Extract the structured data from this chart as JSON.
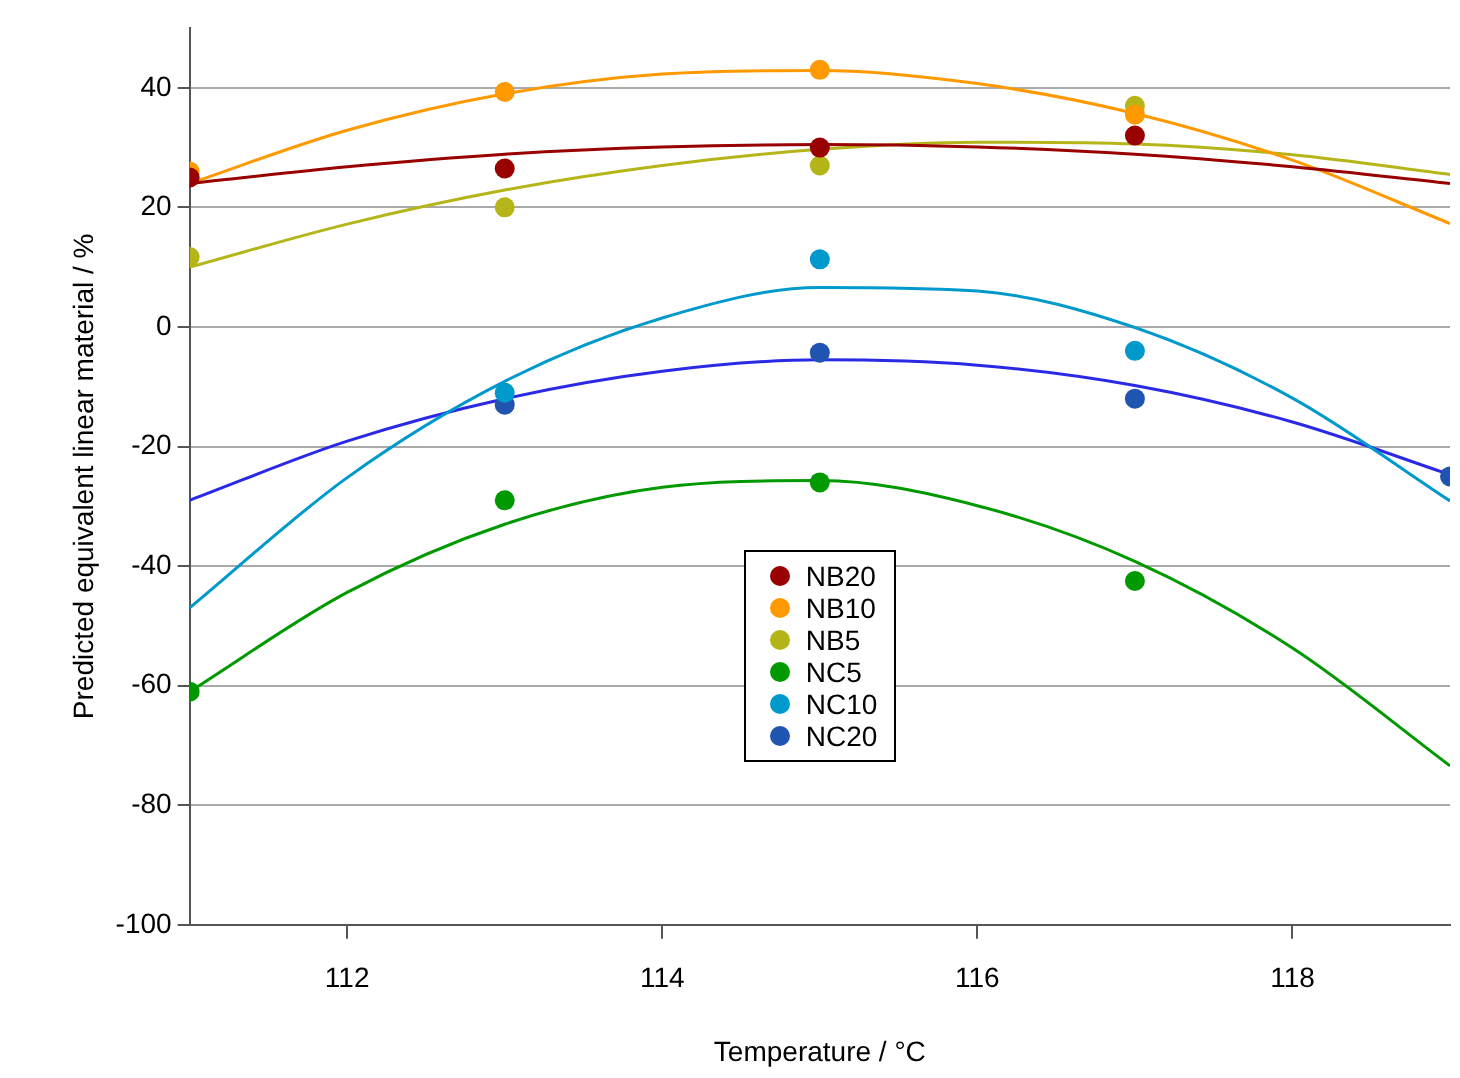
{
  "chart_data": {
    "type": "scatter",
    "xlabel": "Temperature / °C",
    "ylabel": "Predicted equivalent linear material / %",
    "xlim": [
      111,
      119
    ],
    "xticks": [
      112,
      114,
      116,
      118
    ],
    "ylim": [
      -100,
      50
    ],
    "yticks": [
      -100,
      -80,
      -60,
      -40,
      -20,
      0,
      20,
      40
    ],
    "grid": "y",
    "legend": "center",
    "marker": "circle",
    "series": [
      {
        "name": "NB20",
        "type": "scatter",
        "color": "#990000",
        "x": [
          111,
          113,
          115,
          117
        ],
        "values": [
          25,
          26.5,
          30,
          32
        ]
      },
      {
        "name": "NB10",
        "type": "scatter",
        "color": "#ff9900",
        "x": [
          111,
          113,
          115,
          117
        ],
        "values": [
          26,
          39.3,
          43,
          35.5
        ]
      },
      {
        "name": "NB5",
        "type": "scatter",
        "color": "#b5b51a",
        "x": [
          111,
          113,
          115,
          117
        ],
        "values": [
          11.7,
          20,
          27,
          37
        ]
      },
      {
        "name": "NC5",
        "type": "scatter",
        "color": "#009900",
        "x": [
          111,
          113,
          115,
          117
        ],
        "values": [
          -61,
          -29,
          -26,
          -42.5
        ]
      },
      {
        "name": "NC10",
        "type": "scatter",
        "color": "#0099cc",
        "x": [
          113,
          115,
          117
        ],
        "values": [
          -11,
          11.3,
          -4
        ]
      },
      {
        "name": "NC20",
        "type": "scatter",
        "color": "#1f55b0",
        "x": [
          113,
          115,
          117,
          119
        ],
        "values": [
          -13,
          -4.3,
          -12,
          -25
        ]
      },
      {
        "type": "line",
        "color": "#990000",
        "marker": "none",
        "x": [
          111,
          112,
          113,
          114,
          115,
          116,
          117,
          118,
          119
        ],
        "values": [
          24,
          26.8,
          28.9,
          30.1,
          30.5,
          30.1,
          28.9,
          26.8,
          24
        ]
      },
      {
        "type": "line",
        "color": "#ff9900",
        "marker": "none",
        "x": [
          111,
          112,
          113,
          114,
          115,
          116,
          117,
          118,
          119
        ],
        "values": [
          24,
          32.9,
          39,
          42.3,
          42.9,
          40.7,
          35.7,
          27.9,
          17.3
        ]
      },
      {
        "type": "line",
        "color": "#b5b51a",
        "marker": "none",
        "x": [
          111,
          112,
          113,
          114,
          115,
          116,
          117,
          118,
          119
        ],
        "values": [
          10,
          17.2,
          22.9,
          27,
          29.7,
          30.9,
          30.6,
          28.8,
          25.5
        ]
      },
      {
        "type": "line",
        "color": "#009900",
        "marker": "none",
        "x": [
          111,
          112,
          113,
          114,
          115,
          116,
          117,
          118,
          119
        ],
        "values": [
          -61,
          -44.4,
          -33,
          -26.8,
          -25.7,
          -29.9,
          -39.2,
          -53.7,
          -73.4
        ]
      },
      {
        "type": "line",
        "color": "#0099cc",
        "marker": "none",
        "x": [
          111,
          112,
          113,
          114,
          115,
          116,
          117,
          118,
          119
        ],
        "values": [
          -47,
          -25.2,
          -9.1,
          1.5,
          6.6,
          6,
          -0.1,
          -11.9,
          -29.1
        ]
      },
      {
        "type": "line",
        "color": "#2a2ae6",
        "marker": "none",
        "x": [
          111,
          112,
          113,
          114,
          115,
          116,
          117,
          118,
          119
        ],
        "values": [
          -29,
          -19.1,
          -12,
          -7.4,
          -5.5,
          -6.4,
          -9.8,
          -15.9,
          -24.7
        ]
      }
    ]
  }
}
